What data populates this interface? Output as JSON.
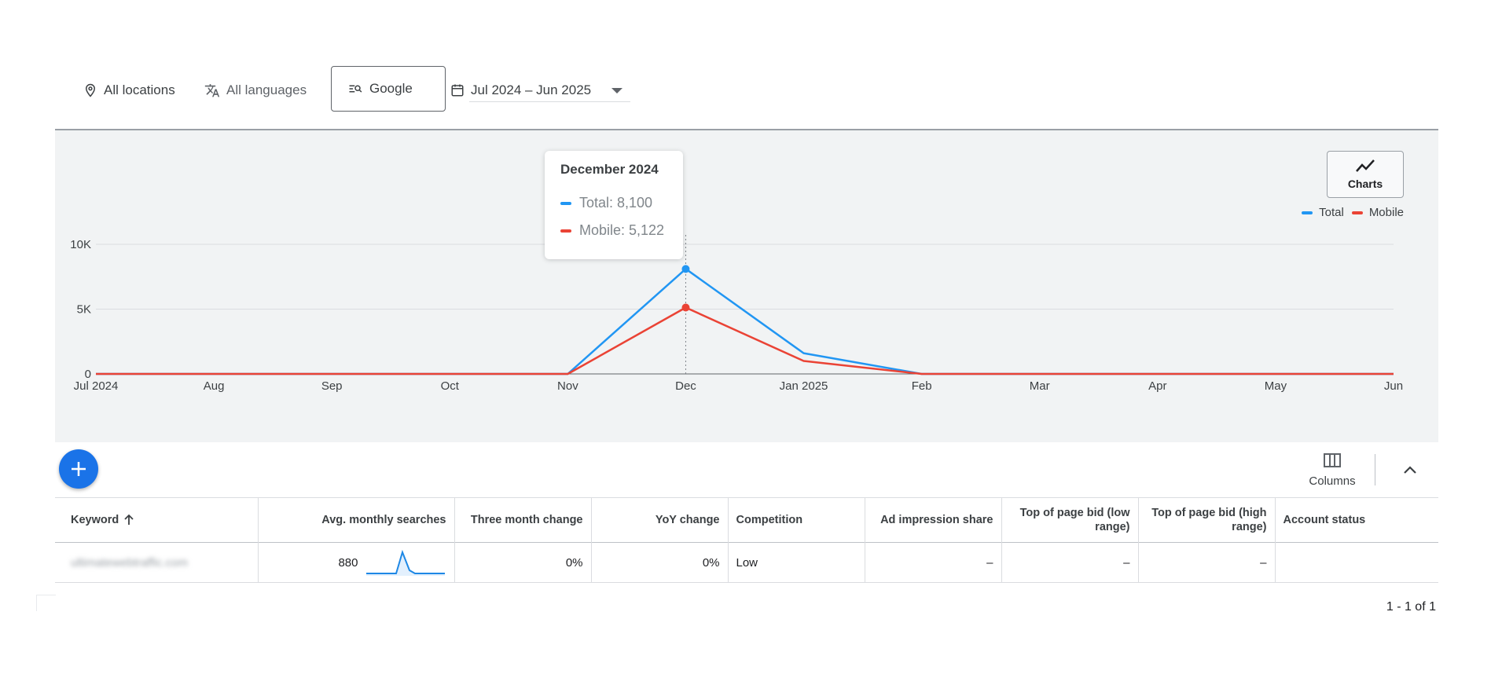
{
  "filters": {
    "locations": "All locations",
    "languages": "All languages",
    "network": "Google",
    "date_range": "Jul 2024 – Jun 2025"
  },
  "chart_controls": {
    "charts_label": "Charts"
  },
  "tooltip": {
    "title": "December 2024",
    "total_line": "Total: 8,100",
    "mobile_line": "Mobile: 5,122"
  },
  "chart_data": {
    "type": "line",
    "categories": [
      "Jul 2024",
      "Aug",
      "Sep",
      "Oct",
      "Nov",
      "Dec",
      "Jan 2025",
      "Feb",
      "Mar",
      "Apr",
      "May",
      "Jun"
    ],
    "series": [
      {
        "name": "Total",
        "color": "#2196f3",
        "values": [
          0,
          0,
          0,
          0,
          0,
          8100,
          1600,
          0,
          0,
          0,
          0,
          0
        ]
      },
      {
        "name": "Mobile",
        "color": "#ea4335",
        "values": [
          0,
          0,
          0,
          0,
          0,
          5122,
          1000,
          0,
          0,
          0,
          0,
          0
        ]
      }
    ],
    "yticks": [
      "0",
      "5K",
      "10K"
    ],
    "ytick_values": [
      0,
      5000,
      10000
    ],
    "ylim": [
      0,
      10000
    ],
    "highlighted_category": "Dec",
    "legend_position": "top-right",
    "grid": true
  },
  "toolbar": {
    "columns_label": "Columns"
  },
  "table": {
    "headers": {
      "keyword": "Keyword",
      "avg_monthly": "Avg. monthly searches",
      "three_month": "Three month change",
      "yoy": "YoY change",
      "competition": "Competition",
      "ad_impression": "Ad impression share",
      "bid_low": "Top of page bid (low range)",
      "bid_high": "Top of page bid (high range)",
      "account_status": "Account status"
    },
    "rows": [
      {
        "keyword": "ultimatewebtraffic.com",
        "avg_monthly": "880",
        "three_month": "0%",
        "yoy": "0%",
        "competition": "Low",
        "ad_impression": "–",
        "bid_low": "–",
        "bid_high": "–",
        "account_status": ""
      }
    ]
  },
  "pagination": {
    "label": "1 - 1 of 1"
  }
}
